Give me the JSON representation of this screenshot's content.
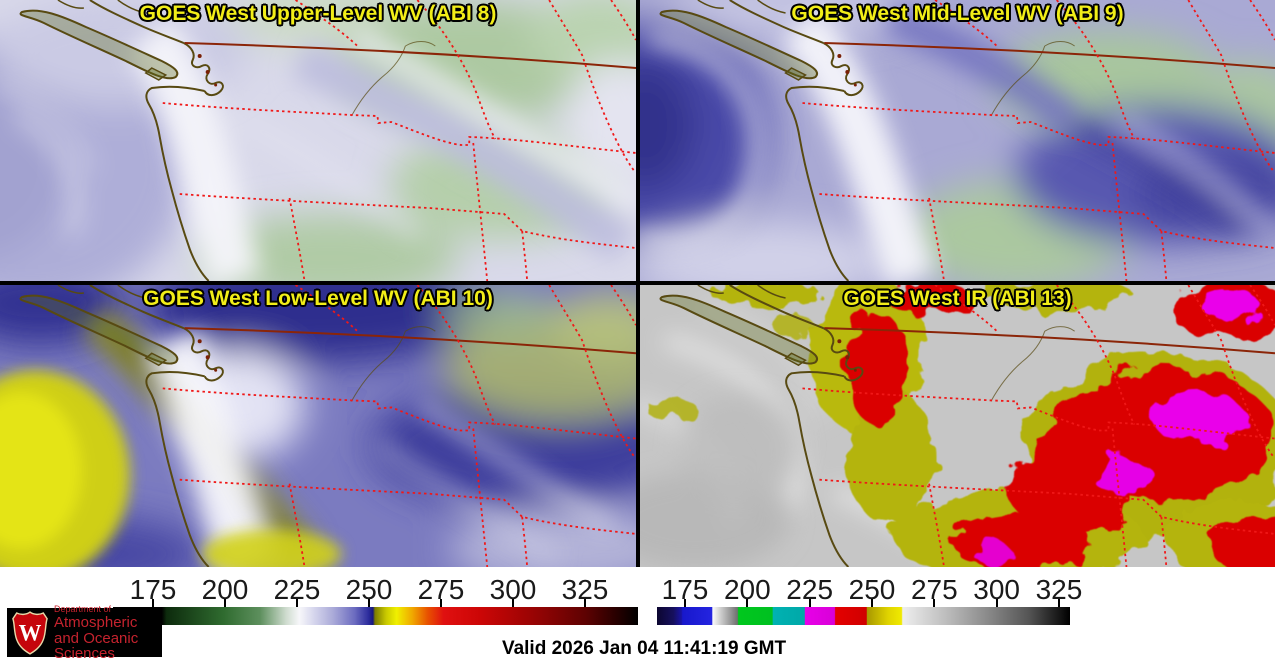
{
  "panels": [
    {
      "id": "abi8",
      "title": "GOES West Upper-Level WV (ABI 8)"
    },
    {
      "id": "abi9",
      "title": "GOES West Mid-Level WV (ABI 9)"
    },
    {
      "id": "abi10",
      "title": "GOES West Low-Level WV (ABI 10)"
    },
    {
      "id": "abi13",
      "title": "GOES West IR (ABI 13)"
    }
  ],
  "colorbar_left": {
    "tick_labels": [
      "175",
      "200",
      "225",
      "250",
      "275",
      "300",
      "325"
    ]
  },
  "colorbar_right": {
    "tick_labels": [
      "175",
      "200",
      "225",
      "250",
      "275",
      "300",
      "325"
    ]
  },
  "logo": {
    "department": "Department of",
    "name_line1": "Atmospheric",
    "name_line2": "and Oceanic Sciences",
    "crest_letter": "W"
  },
  "footer": {
    "valid_label": "Valid 2026 Jan 04 11:41:19 GMT"
  },
  "colors": {
    "title-yellow": "#f2ee18",
    "state-border-red": "#f01818",
    "canada-border-brown": "#8b2508",
    "coast-olive": "#584a12",
    "uw-red": "#c5232e",
    "tick-text": "#1a1a1a"
  }
}
